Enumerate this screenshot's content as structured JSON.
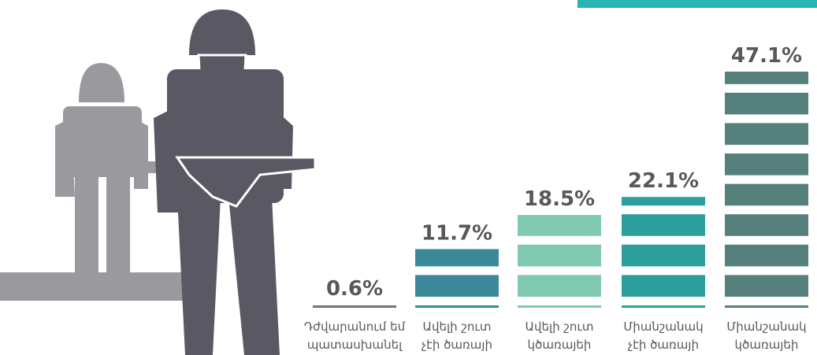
{
  "chart_data": {
    "type": "bar",
    "categories": [
      [
        "Դժվարանում եմ",
        "պատասխանել"
      ],
      [
        "Ավելի շուտ",
        "չէի ծառայի"
      ],
      [
        "Ավելի շուտ",
        "կծառայեի"
      ],
      [
        "Միանշանակ",
        "չէի ծառայի"
      ],
      [
        "Միանշանակ",
        "կծառայեի"
      ]
    ],
    "values": [
      0.6,
      11.7,
      18.5,
      22.1,
      47.1
    ],
    "value_labels": [
      "0.6%",
      "11.7%",
      "18.5%",
      "22.1%",
      "47.1%"
    ],
    "colors": [
      "#747474",
      "#3b889b",
      "#7fcaae",
      "#2a9f9c",
      "#55807c"
    ]
  }
}
